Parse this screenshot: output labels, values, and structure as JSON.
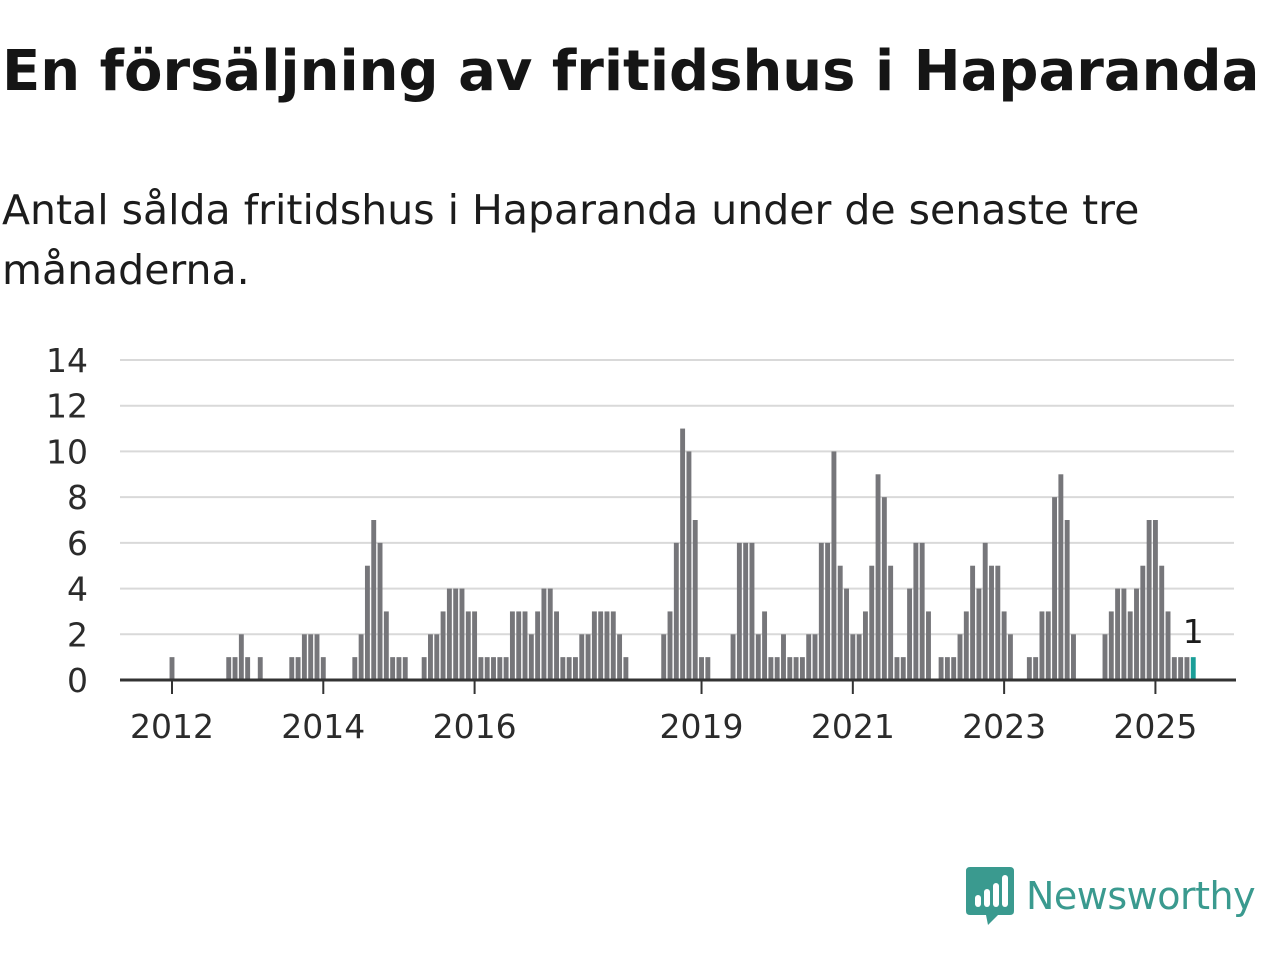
{
  "title": "En försäljning av fritidshus i Haparanda",
  "subtitle": "Antal sålda fritidshus i Haparanda under de senaste tre månaderna.",
  "brand": {
    "name": "Newsworthy",
    "icon": "newsworthy-logo-icon",
    "color": "#3a9a8f"
  },
  "colors": {
    "bar": "#76767a",
    "highlight": "#1a9e98",
    "grid": "#d9d9d9",
    "axis": "#333333"
  },
  "chart_data": {
    "type": "bar",
    "x_start": "2011-01",
    "x_unit": "month",
    "ylim": [
      0,
      14
    ],
    "yticks": [
      0,
      2,
      4,
      6,
      8,
      10,
      12,
      14
    ],
    "xticks": [
      {
        "label": "2012",
        "date": "2012-01"
      },
      {
        "label": "2014",
        "date": "2014-01"
      },
      {
        "label": "2016",
        "date": "2016-01"
      },
      {
        "label": "2019",
        "date": "2019-01"
      },
      {
        "label": "2021",
        "date": "2021-01"
      },
      {
        "label": "2023",
        "date": "2023-01"
      },
      {
        "label": "2025",
        "date": "2025-01"
      }
    ],
    "grid": true,
    "values": [
      0,
      0,
      0,
      0,
      0,
      0,
      0,
      0,
      0,
      0,
      0,
      0,
      1,
      0,
      0,
      0,
      0,
      0,
      0,
      0,
      0,
      1,
      1,
      2,
      1,
      0,
      1,
      0,
      0,
      0,
      0,
      1,
      1,
      2,
      2,
      2,
      1,
      0,
      0,
      0,
      0,
      1,
      2,
      5,
      7,
      6,
      3,
      1,
      1,
      1,
      0,
      0,
      1,
      2,
      2,
      3,
      4,
      4,
      4,
      3,
      3,
      1,
      1,
      1,
      1,
      1,
      3,
      3,
      3,
      2,
      3,
      4,
      4,
      3,
      1,
      1,
      1,
      2,
      2,
      3,
      3,
      3,
      3,
      2,
      1,
      0,
      0,
      0,
      0,
      0,
      2,
      3,
      6,
      11,
      10,
      7,
      1,
      1,
      0,
      0,
      0,
      2,
      6,
      6,
      6,
      2,
      3,
      1,
      1,
      2,
      1,
      1,
      1,
      2,
      2,
      6,
      6,
      10,
      5,
      4,
      2,
      2,
      3,
      5,
      9,
      8,
      5,
      1,
      1,
      4,
      6,
      6,
      3,
      0,
      1,
      1,
      1,
      2,
      3,
      5,
      4,
      6,
      5,
      5,
      3,
      2,
      0,
      0,
      1,
      1,
      3,
      3,
      8,
      9,
      7,
      2,
      0,
      0,
      0,
      0,
      2,
      3,
      4,
      4,
      3,
      4,
      5,
      7,
      7,
      5,
      3,
      1,
      1,
      1,
      1
    ],
    "highlight": {
      "date": "2025-07",
      "value": 1,
      "label": "1"
    }
  }
}
